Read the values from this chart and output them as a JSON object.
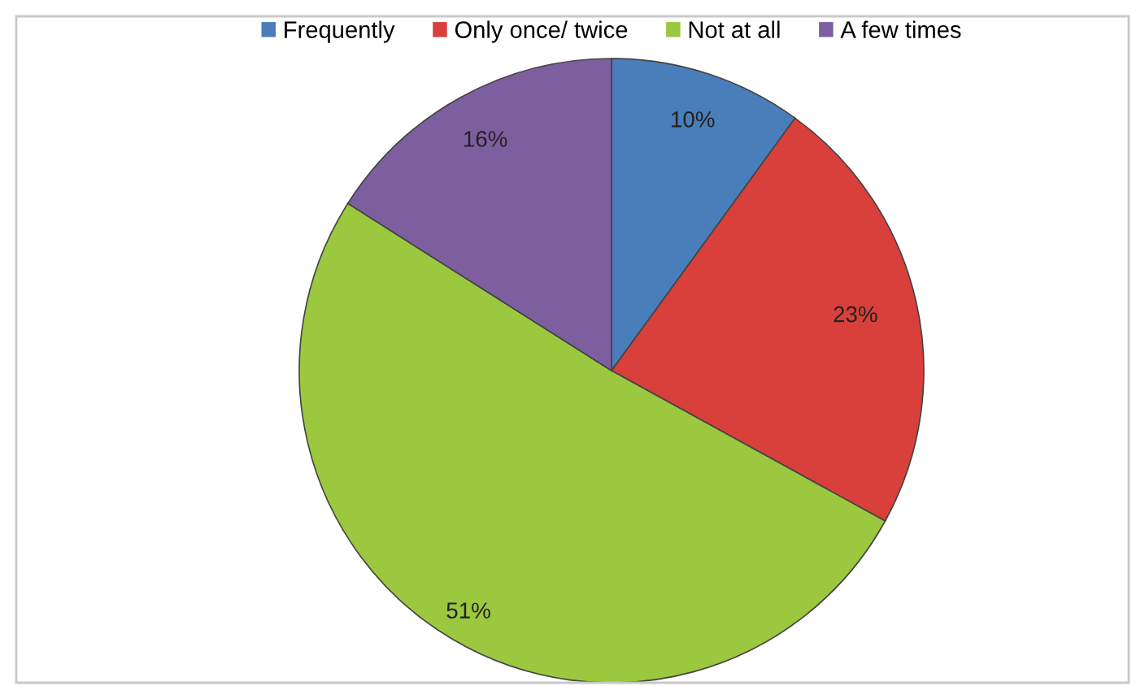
{
  "chart_data": {
    "type": "pie",
    "categories": [
      "Frequently",
      "Only once/ twice",
      "Not at all",
      "A few times"
    ],
    "values": [
      10,
      23,
      51,
      16
    ],
    "colors": [
      "#4a7ebb",
      "#d9403b",
      "#9bc83f",
      "#7d5fa0"
    ],
    "value_labels": [
      "10%",
      "23%",
      "51%",
      "16%"
    ],
    "legend": "top"
  }
}
